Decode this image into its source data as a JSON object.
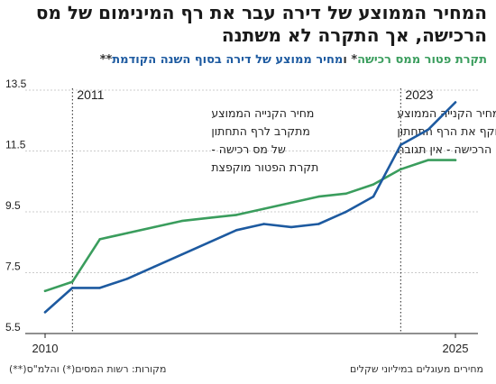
{
  "title": "המחיר הממוצע של דירה עבר את רף המינימום של מס הרכישה, אך התקרה לא משתנה",
  "subtitle": {
    "green_label": "תקרת פטור ממס רכישה",
    "star1": "* ו",
    "blue_label": "מחיר ממוצע של דירה בסוף השנה הקודמת",
    "star2": "**"
  },
  "footer": {
    "units": "מחירים מעוגלים במיליוני שקלים",
    "sources": "מקורות: רשות המסים(*) והלמ\"ס(**)"
  },
  "colors": {
    "green": "#3a9d5d",
    "blue": "#1d5aa0",
    "grid": "#cccccc"
  },
  "chart_data": {
    "type": "line",
    "xlim": [
      2010,
      2025
    ],
    "ylim": [
      5.5,
      13.5
    ],
    "yticks": [
      "5.5",
      "7.5",
      "9.5",
      "11.5",
      "13.5"
    ],
    "xticks": [
      "2010",
      "2025"
    ],
    "grid": true,
    "series": [
      {
        "name": "תקרת פטור ממס רכישה",
        "color": "#3a9d5d",
        "x": [
          2010,
          2011,
          2012,
          2013,
          2014,
          2015,
          2016,
          2017,
          2018,
          2019,
          2020,
          2021,
          2022,
          2023,
          2024,
          2025
        ],
        "y": [
          6.9,
          7.2,
          8.6,
          8.8,
          9.0,
          9.2,
          9.3,
          9.4,
          9.6,
          9.8,
          10.0,
          10.1,
          10.4,
          10.9,
          11.2,
          11.2
        ]
      },
      {
        "name": "מחיר ממוצע של דירה בסוף השנה הקודמת",
        "color": "#1d5aa0",
        "x": [
          2010,
          2011,
          2012,
          2013,
          2014,
          2015,
          2016,
          2017,
          2018,
          2019,
          2020,
          2021,
          2022,
          2023,
          2024,
          2025
        ],
        "y": [
          6.2,
          7.0,
          7.0,
          7.3,
          7.7,
          8.1,
          8.5,
          8.9,
          9.1,
          9.0,
          9.1,
          9.5,
          10.0,
          11.7,
          12.2,
          13.1
        ]
      }
    ],
    "annotations": [
      {
        "year_label": "2011",
        "x": 2011,
        "lines": [
          "מחיר הקנייה הממוצע",
          "מתקרב לרף התחתון",
          "של מס רכישה -",
          "תקרת הפטור מוקפצת"
        ]
      },
      {
        "year_label": "2023",
        "x": 2023,
        "lines": [
          "מחיר הקנייה הממוצע",
          "עוקף את הרף התחתון",
          "של מס הרכישה - אין תגובה"
        ]
      }
    ]
  }
}
